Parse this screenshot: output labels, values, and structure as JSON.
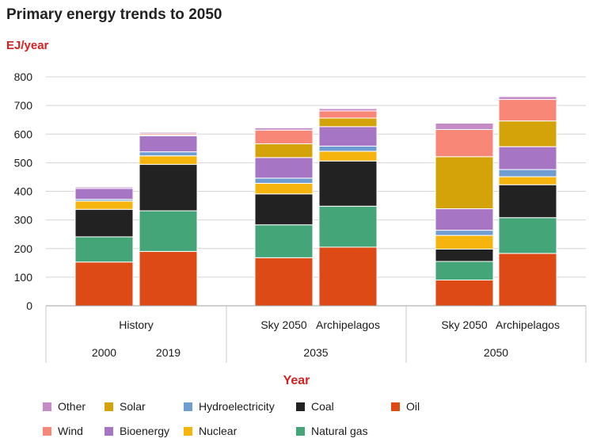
{
  "title": "Primary energy trends to 2050",
  "unit_label": "EJ/year",
  "chart_data": {
    "type": "bar",
    "stacked": true,
    "title": "Primary energy trends to 2050",
    "ylabel": "EJ/year",
    "xlabel": "Year",
    "ylim": [
      0,
      800
    ],
    "yticks": [
      0,
      100,
      200,
      300,
      400,
      500,
      600,
      700,
      800
    ],
    "categories": [
      "2000",
      "2019",
      "Sky 2050 (2035)",
      "Archipelagos (2035)",
      "Sky 2050 (2050)",
      "Archipelagos (2050)"
    ],
    "bar_labels": {
      "scenario_row": [
        {
          "text": "History",
          "bars": [
            0,
            1
          ]
        },
        {
          "text": "Sky 2050",
          "bars": [
            2
          ]
        },
        {
          "text": "Archipelagos",
          "bars": [
            3
          ]
        },
        {
          "text": "Sky 2050",
          "bars": [
            4
          ]
        },
        {
          "text": "Archipelagos",
          "bars": [
            5
          ]
        }
      ],
      "year_row": [
        {
          "text": "2000",
          "bars": [
            0
          ]
        },
        {
          "text": "2019",
          "bars": [
            1
          ]
        },
        {
          "text": "2035",
          "bars": [
            2,
            3
          ]
        },
        {
          "text": "2050",
          "bars": [
            4,
            5
          ]
        }
      ]
    },
    "series": [
      {
        "name": "Oil",
        "color": "#dd4a15",
        "values": [
          153,
          190,
          168,
          205,
          90,
          183
        ]
      },
      {
        "name": "Natural gas",
        "color": "#44a678",
        "values": [
          88,
          142,
          115,
          143,
          65,
          125
        ]
      },
      {
        "name": "Coal",
        "color": "#222222",
        "values": [
          96,
          162,
          108,
          158,
          43,
          115
        ]
      },
      {
        "name": "Nuclear",
        "color": "#f6b50e",
        "values": [
          29,
          30,
          37,
          34,
          48,
          28
        ]
      },
      {
        "name": "Hydroelectricity",
        "color": "#6f9cd1",
        "values": [
          6,
          14,
          18,
          18,
          18,
          25
        ]
      },
      {
        "name": "Bioenergy",
        "color": "#a675c3",
        "values": [
          38,
          56,
          72,
          68,
          75,
          80
        ]
      },
      {
        "name": "Solar",
        "color": "#d4a30a",
        "values": [
          0,
          2,
          48,
          30,
          182,
          90
        ]
      },
      {
        "name": "Wind",
        "color": "#f88778",
        "values": [
          0,
          5,
          48,
          25,
          95,
          75
        ]
      },
      {
        "name": "Other",
        "color": "#c48bc6",
        "values": [
          5,
          5,
          8,
          8,
          22,
          10
        ]
      }
    ]
  },
  "legend": {
    "row1": [
      "Other",
      "Solar",
      "Hydroelectricity",
      "Coal",
      "Oil"
    ],
    "row2": [
      "Wind",
      "Bioenergy",
      "Nuclear",
      "Natural gas"
    ]
  }
}
